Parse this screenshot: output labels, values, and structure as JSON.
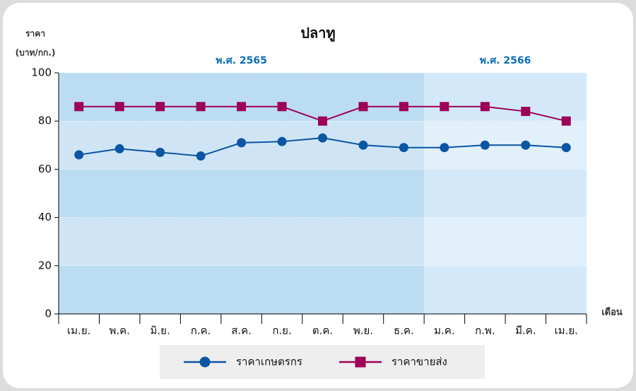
{
  "chart_data": {
    "type": "line",
    "title": "ปลาทู",
    "y_label": [
      "ราคา",
      "(บาท/กก.)"
    ],
    "x_label": "เดือน",
    "periods": [
      {
        "label": "พ.ศ. 2565",
        "span": 9
      },
      {
        "label": "พ.ศ. 2566",
        "span": 4
      }
    ],
    "categories": [
      "เม.ย.",
      "พ.ค.",
      "มิ.ย.",
      "ก.ค.",
      "ส.ค.",
      "ก.ย.",
      "ต.ค.",
      "พ.ย.",
      "ธ.ค.",
      "ม.ค.",
      "ก.พ.",
      "มี.ค.",
      "เม.ย."
    ],
    "series": [
      {
        "name": "ราคาเกษตรกร",
        "color": "#0b55a3",
        "marker": "circle",
        "values": [
          66,
          68.5,
          67,
          65.5,
          71,
          71.5,
          73,
          70,
          69,
          69,
          70,
          70,
          69
        ]
      },
      {
        "name": "ราคาขายส่ง",
        "color": "#9c0057",
        "marker": "square",
        "values": [
          86,
          86,
          86,
          86,
          86,
          86,
          80,
          86,
          86,
          86,
          86,
          84,
          80
        ]
      }
    ],
    "ylim": [
      0,
      100
    ],
    "yticks": [
      0,
      20,
      40,
      60,
      80,
      100
    ],
    "legend": "bottom"
  }
}
